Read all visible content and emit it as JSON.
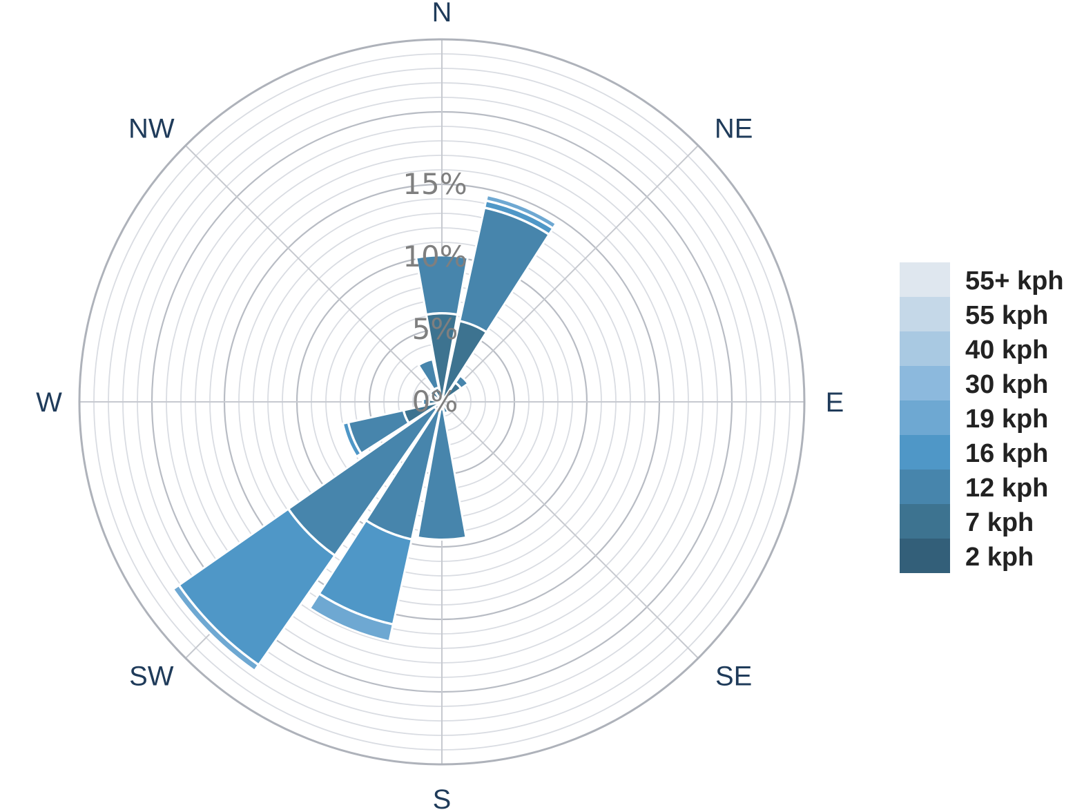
{
  "chart_data": {
    "type": "wind-rose",
    "directions": [
      "N",
      "NNE",
      "NE",
      "ENE",
      "E",
      "ESE",
      "SE",
      "SSE",
      "S",
      "SSW",
      "SW",
      "WSW",
      "W",
      "WNW",
      "NW",
      "NNW"
    ],
    "compass_labels": [
      "N",
      "NE",
      "E",
      "SE",
      "S",
      "SW",
      "W",
      "NW"
    ],
    "radial_ticks": [
      "0%",
      "5%",
      "10%",
      "15%"
    ],
    "radial_range": [
      0,
      25
    ],
    "radial_unit": "%",
    "grid": true,
    "legend_position": "right",
    "legend": [
      {
        "label": "55+ kph",
        "color": "#dfe7ef"
      },
      {
        "label": "55 kph",
        "color": "#c5d8e8"
      },
      {
        "label": "40 kph",
        "color": "#a9c9e2"
      },
      {
        "label": "30 kph",
        "color": "#8cb9dd"
      },
      {
        "label": "19 kph",
        "color": "#6ea8d2"
      },
      {
        "label": "16 kph",
        "color": "#4f97c7"
      },
      {
        "label": "12 kph",
        "color": "#4785ac"
      },
      {
        "label": "7 kph",
        "color": "#3d7390"
      },
      {
        "label": "2 kph",
        "color": "#335f79"
      }
    ],
    "series": [
      {
        "name": "2 kph",
        "values": [
          0,
          0,
          0,
          0,
          0,
          0,
          0,
          0,
          0,
          0,
          0,
          0,
          0,
          0,
          0,
          0
        ]
      },
      {
        "name": "7 kph",
        "values": [
          6.1,
          5.7,
          1.6,
          0,
          0,
          0,
          0,
          0.3,
          0.5,
          0.6,
          0.6,
          2.7,
          0.9,
          0.5,
          1.0,
          1.0
        ]
      },
      {
        "name": "12 kph",
        "values": [
          4.0,
          8.0,
          0.6,
          0,
          0,
          0,
          0,
          0.5,
          9.0,
          9.1,
          12.3,
          3.9,
          0.4,
          0,
          0.1,
          2.0
        ]
      },
      {
        "name": "16 kph",
        "values": [
          0,
          0.5,
          0,
          0,
          0,
          0,
          0,
          0,
          0,
          6.0,
          9.2,
          0.4,
          0,
          0,
          0,
          0
        ]
      },
      {
        "name": "19 kph",
        "values": [
          0,
          0.4,
          0,
          0,
          0,
          0,
          0,
          0,
          0,
          1.2,
          0.5,
          0,
          0,
          0,
          0,
          0
        ]
      }
    ]
  }
}
